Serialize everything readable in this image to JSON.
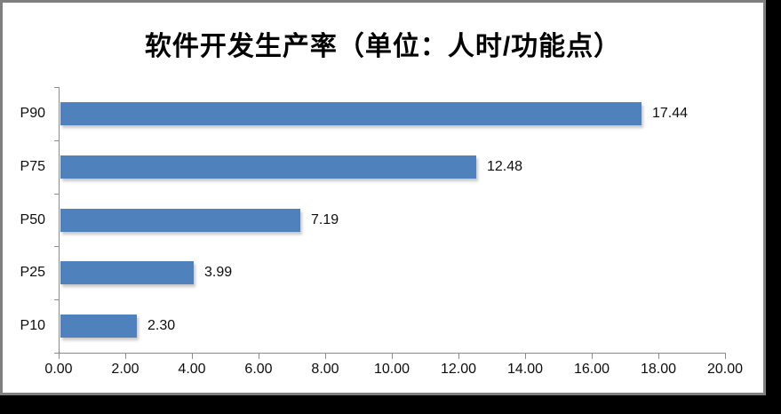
{
  "title": "软件开发生产率（单位：人时/功能点）",
  "chart_data": {
    "type": "bar",
    "orientation": "horizontal",
    "title": "软件开发生产率（单位：人时/功能点）",
    "categories": [
      "P90",
      "P75",
      "P50",
      "P25",
      "P10"
    ],
    "values": [
      17.44,
      12.48,
      7.19,
      3.99,
      2.3
    ],
    "value_labels": [
      "17.44",
      "12.48",
      "7.19",
      "3.99",
      "2.30"
    ],
    "xlabel": "",
    "ylabel": "",
    "xlim": [
      0,
      20
    ],
    "xtick_labels": [
      "0.00",
      "2.00",
      "4.00",
      "6.00",
      "8.00",
      "10.00",
      "12.00",
      "14.00",
      "16.00",
      "18.00",
      "20.00"
    ],
    "grid": false,
    "legend": "none",
    "data_labels": true,
    "bar_color": "#4f81bd",
    "axis_color": "#8c8c8c",
    "text_color": "#0d0d0d",
    "frame_border_color": "#7f7f7f",
    "background_color": "#ffffff"
  }
}
